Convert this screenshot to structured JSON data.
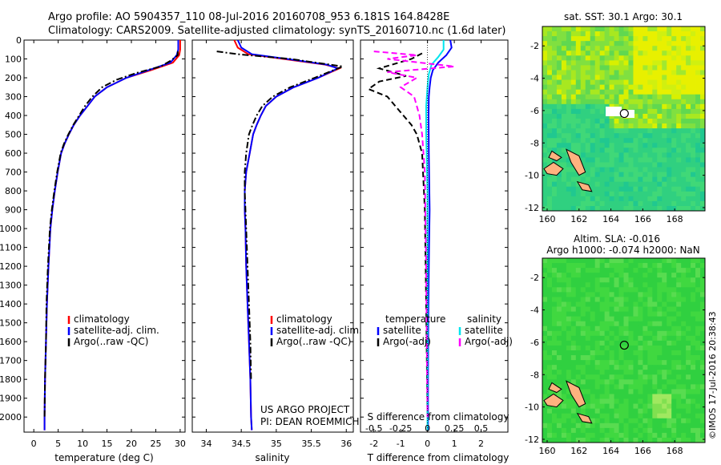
{
  "header": {
    "line1": "Argo profile: AO 5904357_110 08-Jul-2016 20160708_953 6.181S 164.8428E",
    "line2": "Climatology: CARS2009. Satellite-adjusted climatology: synTS_20160710.nc (1.6d later)"
  },
  "colors": {
    "climatology": "#ff0000",
    "satellite": "#0000ff",
    "argo": "#000000",
    "satellite_salinity": "#00e5ee",
    "argo_salinity": "#ff00ff",
    "land": "#ffb27f"
  },
  "depth_axis": {
    "range": [
      0,
      2080
    ],
    "ticks": [
      0,
      100,
      200,
      300,
      400,
      500,
      600,
      700,
      800,
      900,
      1000,
      1100,
      1200,
      1300,
      1400,
      1500,
      1600,
      1700,
      1800,
      1900,
      2000
    ]
  },
  "chart_data": [
    {
      "type": "line",
      "panel": "temperature",
      "xlabel": "temperature (deg C)",
      "xlim": [
        -2,
        31
      ],
      "ylim": [
        2080,
        0
      ],
      "xticks": [
        0,
        5,
        10,
        15,
        20,
        25,
        30
      ],
      "legend": {
        "placement": "bottom-left",
        "entries": [
          "climatology",
          "satellite-adj. clim.",
          "Argo(..raw -QC)"
        ]
      },
      "series": [
        {
          "name": "climatology",
          "style": "solid",
          "color": "#ff0000",
          "x": [
            30.0,
            30.0,
            29.8,
            28.5,
            24,
            19,
            15,
            12.5,
            11,
            9.5,
            8.2,
            7.2,
            6.3,
            5.6,
            4.9,
            4.3,
            3.8,
            3.4,
            3.0,
            2.7,
            2.5,
            2.3,
            2.2,
            2.2
          ],
          "y": [
            0,
            50,
            80,
            120,
            160,
            200,
            250,
            300,
            350,
            400,
            450,
            500,
            550,
            600,
            700,
            800,
            900,
            1000,
            1200,
            1400,
            1600,
            1800,
            2000,
            2070
          ]
        },
        {
          "name": "satellite-adj. clim.",
          "style": "solid",
          "color": "#0000ff",
          "x": [
            29.6,
            29.6,
            29.3,
            28.0,
            23.5,
            19,
            15,
            12.5,
            11,
            9.5,
            8.2,
            7.2,
            6.3,
            5.6,
            4.9,
            4.3,
            3.8,
            3.4,
            3.0,
            2.7,
            2.5,
            2.3,
            2.2,
            2.2
          ],
          "y": [
            0,
            50,
            80,
            120,
            160,
            200,
            250,
            300,
            350,
            400,
            450,
            500,
            550,
            600,
            700,
            800,
            900,
            1000,
            1200,
            1400,
            1600,
            1800,
            2000,
            2070
          ]
        },
        {
          "name": "Argo(..raw -QC)",
          "style": "dash-dot",
          "color": "#000000",
          "x": [
            29.5,
            29.5,
            28,
            26,
            21,
            17,
            14,
            12,
            10.5,
            9.3,
            8.1,
            7.1,
            6.2,
            5.5,
            4.8,
            4.2,
            3.7,
            3.3,
            2.9,
            2.6,
            2.5,
            2.3,
            2.2
          ],
          "y": [
            60,
            80,
            110,
            140,
            175,
            210,
            250,
            300,
            350,
            400,
            450,
            500,
            550,
            600,
            700,
            800,
            900,
            1000,
            1200,
            1400,
            1600,
            1800,
            2000
          ]
        }
      ]
    },
    {
      "type": "line",
      "panel": "salinity",
      "xlabel": "salinity",
      "xlim": [
        33.8,
        36.1
      ],
      "ylim": [
        2080,
        0
      ],
      "xticks": [
        34,
        34.5,
        35,
        35.5,
        36
      ],
      "xticklabels": [
        "34",
        "34.5",
        "35",
        "35.5",
        "36"
      ],
      "legend": {
        "placement": "bottom-left",
        "entries": [
          "climatology",
          "satellite-adj. clim.",
          "Argo(..raw -QC)"
        ]
      },
      "annotations": [
        "US ARGO PROJECT",
        "PI: DEAN ROEMMICH"
      ],
      "series": [
        {
          "name": "climatology",
          "style": "solid",
          "color": "#ff0000",
          "x": [
            34.4,
            34.45,
            34.6,
            35.1,
            35.7,
            35.9,
            35.6,
            35.25,
            35.0,
            34.85,
            34.78,
            34.72,
            34.67,
            34.62,
            34.57,
            34.55,
            34.55,
            34.56,
            34.57,
            34.59,
            34.61,
            34.63,
            34.64,
            34.65
          ],
          "y": [
            0,
            40,
            75,
            100,
            130,
            150,
            200,
            250,
            300,
            350,
            400,
            450,
            500,
            600,
            700,
            800,
            900,
            1000,
            1200,
            1400,
            1600,
            1800,
            2000,
            2070
          ]
        },
        {
          "name": "satellite-adj. clim.",
          "style": "solid",
          "color": "#0000ff",
          "x": [
            34.45,
            34.5,
            34.65,
            35.15,
            35.72,
            35.88,
            35.6,
            35.25,
            35.0,
            34.85,
            34.78,
            34.72,
            34.67,
            34.62,
            34.57,
            34.55,
            34.55,
            34.56,
            34.57,
            34.59,
            34.61,
            34.63,
            34.64,
            34.65
          ],
          "y": [
            0,
            40,
            75,
            100,
            130,
            150,
            200,
            250,
            300,
            350,
            400,
            450,
            500,
            600,
            700,
            800,
            900,
            1000,
            1200,
            1400,
            1600,
            1800,
            2000,
            2070
          ]
        },
        {
          "name": "Argo(..raw -QC)",
          "style": "dash-dot",
          "color": "#000000",
          "x": [
            34.15,
            34.45,
            35.2,
            35.95,
            35.55,
            35.2,
            34.95,
            34.8,
            34.72,
            34.66,
            34.61,
            34.57,
            34.55,
            34.55,
            34.56,
            34.57,
            34.59,
            34.61,
            34.63,
            34.64
          ],
          "y": [
            60,
            75,
            100,
            140,
            200,
            250,
            300,
            350,
            400,
            450,
            500,
            600,
            700,
            800,
            900,
            1000,
            1200,
            1400,
            1600,
            1800
          ]
        }
      ]
    },
    {
      "type": "line",
      "panel": "difference",
      "xlabel": "T difference from climatology",
      "xlabel_top": "S difference from climatology",
      "xlim": [
        -2.5,
        3.0
      ],
      "ylim": [
        2080,
        0
      ],
      "xticks": [
        -2,
        -1,
        0,
        1,
        2
      ],
      "top_ticks": [
        "-0.5",
        "-0.25",
        "0",
        "0.25",
        "0.5"
      ],
      "legend": {
        "placement": "bottom-left",
        "columns": [
          {
            "title": "temperature",
            "entries": [
              "satellite",
              "Argo(-adj)"
            ]
          },
          {
            "title": "salinity",
            "entries": [
              "satellite",
              "Argo(-adj)"
            ]
          }
        ]
      },
      "series": [
        {
          "name": "satellite",
          "quantity": "temperature",
          "style": "solid",
          "color": "#0000ff",
          "x": [
            0.85,
            0.9,
            0.7,
            0.4,
            0.2,
            0.12,
            0.08,
            0.05,
            0.04,
            0.05,
            0.08,
            0.06,
            0.05,
            0.03,
            0.02,
            0.02
          ],
          "y": [
            0,
            40,
            80,
            120,
            160,
            200,
            250,
            300,
            400,
            600,
            900,
            1100,
            1200,
            1500,
            1800,
            2070
          ]
        },
        {
          "name": "Argo(-adj)",
          "quantity": "temperature",
          "style": "dashed",
          "color": "#000000",
          "x": [
            -0.2,
            -0.6,
            -1.8,
            -0.8,
            -1.8,
            -2.2,
            -1.5,
            -1.2,
            -0.9,
            -0.6,
            -0.4,
            -0.2,
            -0.1,
            -0.05,
            0.0
          ],
          "y": [
            70,
            100,
            150,
            190,
            220,
            260,
            300,
            350,
            400,
            450,
            500,
            600,
            900,
            1400,
            2000
          ]
        },
        {
          "name": "satellite",
          "quantity": "salinity",
          "style": "solid",
          "color": "#00e5ee",
          "x": [
            0.6,
            0.6,
            0.4,
            0.15,
            0.05,
            0.0,
            -0.05,
            -0.05,
            0.0,
            0.0,
            0.0
          ],
          "y": [
            0,
            50,
            90,
            130,
            180,
            250,
            350,
            500,
            800,
            1500,
            2070
          ]
        },
        {
          "name": "Argo(-adj)",
          "quantity": "salinity",
          "style": "dashed",
          "color": "#ff00ff",
          "x": [
            -2.0,
            -0.4,
            -1.5,
            1.0,
            -1.5,
            -0.4,
            -1.0,
            -0.5,
            -0.3,
            -0.2,
            -0.1,
            -0.05,
            0.0
          ],
          "y": [
            60,
            80,
            100,
            140,
            170,
            200,
            250,
            300,
            400,
            500,
            700,
            1200,
            2000
          ]
        }
      ]
    }
  ],
  "maps": [
    {
      "title": "sat. SST: 30.1  Argo: 30.1",
      "lon_range": [
        159.7,
        169.9
      ],
      "lat_range": [
        -12.2,
        -0.8
      ],
      "xticks": [
        160,
        162,
        164,
        166,
        168
      ],
      "yticks": [
        -2,
        -4,
        -6,
        -8,
        -10,
        -12
      ],
      "float_position": {
        "lon": 164.84,
        "lat": -6.18
      },
      "field": "sst"
    },
    {
      "title": "Altim. SLA: -0.016",
      "subtitle": "Argo h1000: -0.074 h2000: NaN",
      "lon_range": [
        159.7,
        169.9
      ],
      "lat_range": [
        -12.2,
        -0.8
      ],
      "xticks": [
        160,
        162,
        164,
        166,
        168
      ],
      "yticks": [
        -2,
        -4,
        -6,
        -8,
        -10,
        -12
      ],
      "float_position": {
        "lon": 164.84,
        "lat": -6.18
      },
      "field": "sla"
    }
  ],
  "footer": {
    "stamp": "©IMOS 17-Jul-2016 20:38:43"
  }
}
